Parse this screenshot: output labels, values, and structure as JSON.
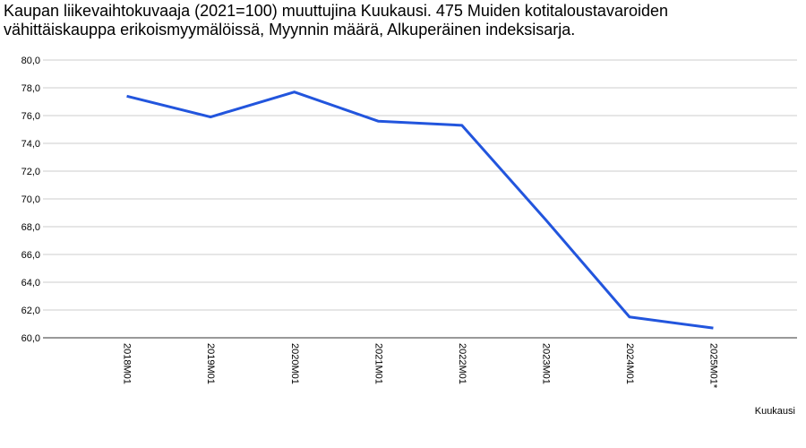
{
  "chart_data": {
    "type": "line",
    "title": "Kaupan liikevaihtokuvaaja (2021=100) muuttujina Kuukausi. 475 Muiden kotitaloustavaroiden vähittäiskauppa erikoismyymälöissä, Myynnin määrä, Alkuperäinen indeksisarja.",
    "x_label": "Kuukausi",
    "categories": [
      "2018M01",
      "2019M01",
      "2020M01",
      "2021M01",
      "2022M01",
      "2023M01",
      "2024M01",
      "2025M01*"
    ],
    "values": [
      77.4,
      75.9,
      77.7,
      75.6,
      75.3,
      68.5,
      61.5,
      60.7
    ],
    "color": "#2255dd",
    "ylim": [
      60,
      80
    ],
    "yticks": [
      {
        "value": 60,
        "label": "60,0"
      },
      {
        "value": 62,
        "label": "62,0"
      },
      {
        "value": 64,
        "label": "64,0"
      },
      {
        "value": 66,
        "label": "66,0"
      },
      {
        "value": 68,
        "label": "68,0"
      },
      {
        "value": 70,
        "label": "70,0"
      },
      {
        "value": 72,
        "label": "72,0"
      },
      {
        "value": 74,
        "label": "74,0"
      },
      {
        "value": 76,
        "label": "76,0"
      },
      {
        "value": 78,
        "label": "78,0"
      },
      {
        "value": 80,
        "label": "80,0"
      }
    ],
    "grid": true
  }
}
